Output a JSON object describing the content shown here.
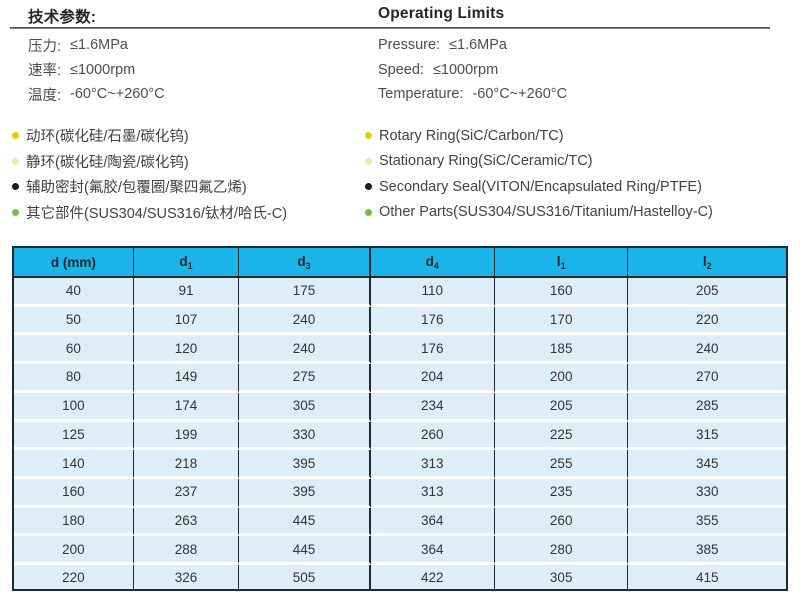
{
  "tech": {
    "title_zh": "技术参数:",
    "title_en": "Operating Limits",
    "left": [
      {
        "label": "压力:",
        "value": "≤1.6MPa"
      },
      {
        "label": "速率:",
        "value": "≤1000rpm"
      },
      {
        "label": "温度:",
        "value": "-60°C~+260°C"
      }
    ],
    "right": [
      {
        "label": "Pressure:",
        "value": "≤1.6MPa"
      },
      {
        "label": "Speed:",
        "value": "≤1000rpm"
      },
      {
        "label": "Temperature:",
        "value": "-60°C~+260°C"
      }
    ]
  },
  "materials": [
    {
      "bullet_color": "#ddd000",
      "zh": "动环(碳化硅/石墨/碳化钨)",
      "en": "Rotary Ring(SiC/Carbon/TC)"
    },
    {
      "bullet_color": "#efeca6",
      "zh": "静环(碳化硅/陶瓷/碳化钨)",
      "en": "Stationary Ring(SiC/Ceramic/TC)"
    },
    {
      "bullet_color": "#1c1c1c",
      "zh": "辅助密封(氟胶/包覆圈/聚四氟乙烯)",
      "en": "Secondary Seal(VITON/Encapsulated Ring/PTFE)"
    },
    {
      "bullet_color": "#72bf44",
      "zh": "其它部件(SUS304/SUS316/钛材/哈氏-C)",
      "en": "Other Parts(SUS304/SUS316/Titanium/Hastelloy-C)"
    }
  ],
  "table": {
    "headers": [
      {
        "text": "d (mm)",
        "sub": ""
      },
      {
        "text": "d",
        "sub": "1"
      },
      {
        "text": "d",
        "sub": "3"
      },
      {
        "text": "d",
        "sub": "4"
      },
      {
        "text": "l",
        "sub": "1"
      },
      {
        "text": "l",
        "sub": "2"
      }
    ],
    "rows": [
      [
        "40",
        "91",
        "175",
        "110",
        "160",
        "205"
      ],
      [
        "50",
        "107",
        "240",
        "176",
        "170",
        "220"
      ],
      [
        "60",
        "120",
        "240",
        "176",
        "185",
        "240"
      ],
      [
        "80",
        "149",
        "275",
        "204",
        "200",
        "270"
      ],
      [
        "100",
        "174",
        "305",
        "234",
        "205",
        "285"
      ],
      [
        "125",
        "199",
        "330",
        "260",
        "225",
        "315"
      ],
      [
        "140",
        "218",
        "395",
        "313",
        "255",
        "345"
      ],
      [
        "160",
        "237",
        "395",
        "313",
        "235",
        "330"
      ],
      [
        "180",
        "263",
        "445",
        "364",
        "260",
        "355"
      ],
      [
        "200",
        "288",
        "445",
        "364",
        "280",
        "385"
      ],
      [
        "220",
        "326",
        "505",
        "422",
        "305",
        "415"
      ]
    ]
  },
  "colors": {
    "header_bg": "#1bb4e9",
    "row_bg": "#ddeef8",
    "border_dark": "#1e2a30",
    "rule": "#7d7d7d"
  }
}
